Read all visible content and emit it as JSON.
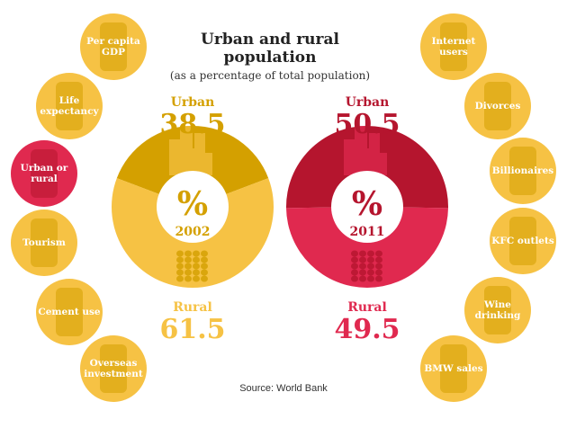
{
  "title": "Urban and rural population",
  "subtitle": "(as a percentage of total population)",
  "source": "Source: World Bank",
  "colors": {
    "gold_light": "#f6c244",
    "gold_dark": "#d4a000",
    "red_dark": "#b5152e",
    "red_light": "#e0294f"
  },
  "left_badges": [
    {
      "label": "Per capita GDP",
      "icon": "person-icon",
      "active": false
    },
    {
      "label": "Life expectancy",
      "icon": "baby-icon",
      "active": false
    },
    {
      "label": "Urban or rural",
      "icon": "city-icon",
      "active": true
    },
    {
      "label": "Tourism",
      "icon": "plane-palm-icon",
      "active": false
    },
    {
      "label": "Cement use",
      "icon": "cement-truck-icon",
      "active": false
    },
    {
      "label": "Overseas investment",
      "icon": "globe-icon",
      "active": false
    }
  ],
  "right_badges": [
    {
      "label": "Internet users",
      "icon": "laptop-icon",
      "active": false
    },
    {
      "label": "Divorces",
      "icon": "couple-icon",
      "active": false
    },
    {
      "label": "Billionaires",
      "icon": "money-stack-icon",
      "active": false
    },
    {
      "label": "KFC outlets",
      "icon": "chicken-icon",
      "active": false
    },
    {
      "label": "Wine drinking",
      "icon": "wine-bottle-icon",
      "active": false
    },
    {
      "label": "BMW sales",
      "icon": "car-icon",
      "active": false
    }
  ],
  "chart_data": [
    {
      "type": "pie",
      "center_symbol": "%",
      "year": "2002",
      "categories": [
        "Urban",
        "Rural"
      ],
      "values": [
        38.5,
        61.5
      ],
      "value_labels": [
        "38.5",
        "61.5"
      ]
    },
    {
      "type": "pie",
      "center_symbol": "%",
      "year": "2011",
      "categories": [
        "Urban",
        "Rural"
      ],
      "values": [
        50.5,
        49.5
      ],
      "value_labels": [
        "50.5",
        "49.5"
      ]
    }
  ]
}
